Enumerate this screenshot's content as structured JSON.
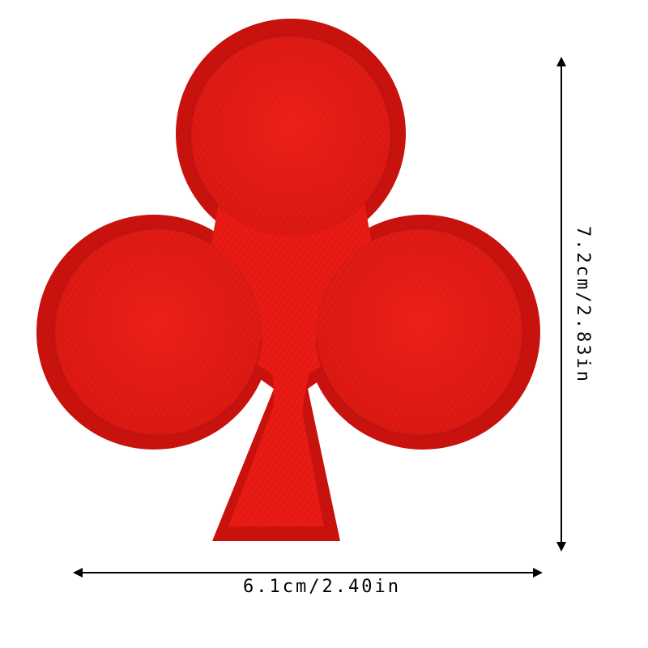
{
  "image": {
    "subject": "club-suit-patch-icon",
    "patch_color": "#ea1a14",
    "border_color": "#cf1410",
    "shadow_color": "#b51210",
    "background_color": "#ffffff"
  },
  "dimensions": {
    "width_label": "6.1cm/2.40in",
    "height_label": "7.2cm/2.83in",
    "arrow_color": "#000000"
  }
}
